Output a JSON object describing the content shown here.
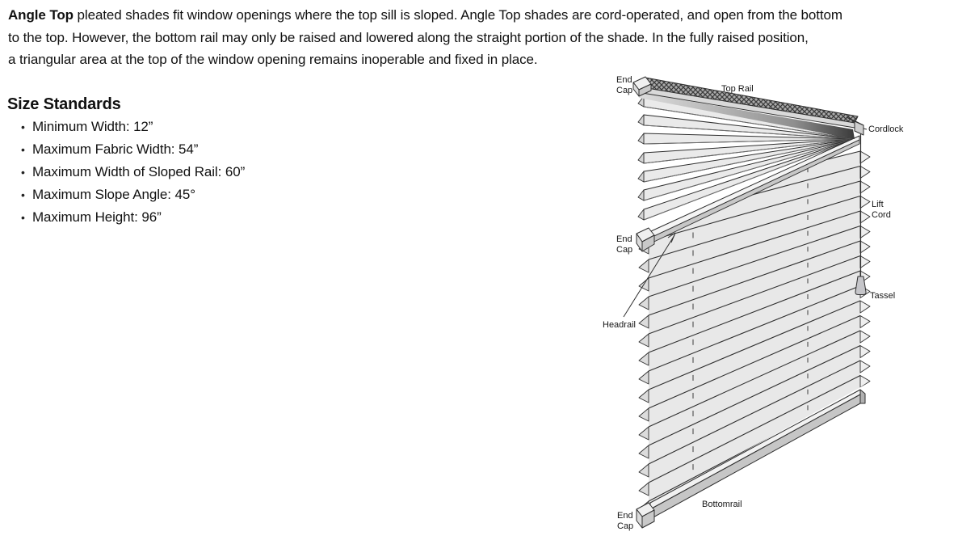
{
  "intro": {
    "lead": "Angle Top",
    "lines": [
      " pleated shades fit window openings where the top sill is sloped. Angle Top shades are cord-operated, and open from the bottom",
      "to the top. However, the bottom rail may only be raised and lowered along the straight portion of the shade. In the fully raised position,",
      "a triangular area at the top of the window opening remains inoperable and fixed in place."
    ]
  },
  "size_standards": {
    "heading": "Size Standards",
    "bullet_glyph": "•",
    "items": [
      "Minimum Width: 12”",
      "Maximum Fabric Width: 54”",
      "Maximum Width of Sloped Rail: 60”",
      "Maximum Slope Angle: 45°",
      "Maximum Height: 96”"
    ]
  },
  "diagram": {
    "labels": {
      "end_cap_top": [
        "End",
        "Cap"
      ],
      "top_rail": "Top Rail",
      "cordlock": "Cordlock",
      "end_cap_middle": [
        "End",
        "Cap"
      ],
      "lift_cord": [
        "Lift",
        "Cord"
      ],
      "tassel": "Tassel",
      "headrail": "Headrail",
      "bottomrail": "Bottomrail",
      "end_cap_bottom": [
        "End",
        "Cap"
      ]
    },
    "colors": {
      "outline": "#2f2f2f",
      "pleat_fill": "#e8e8e8",
      "rail_front": "#c7c7c7",
      "rail_top": "#f4f4f4",
      "text": "#161616"
    }
  }
}
